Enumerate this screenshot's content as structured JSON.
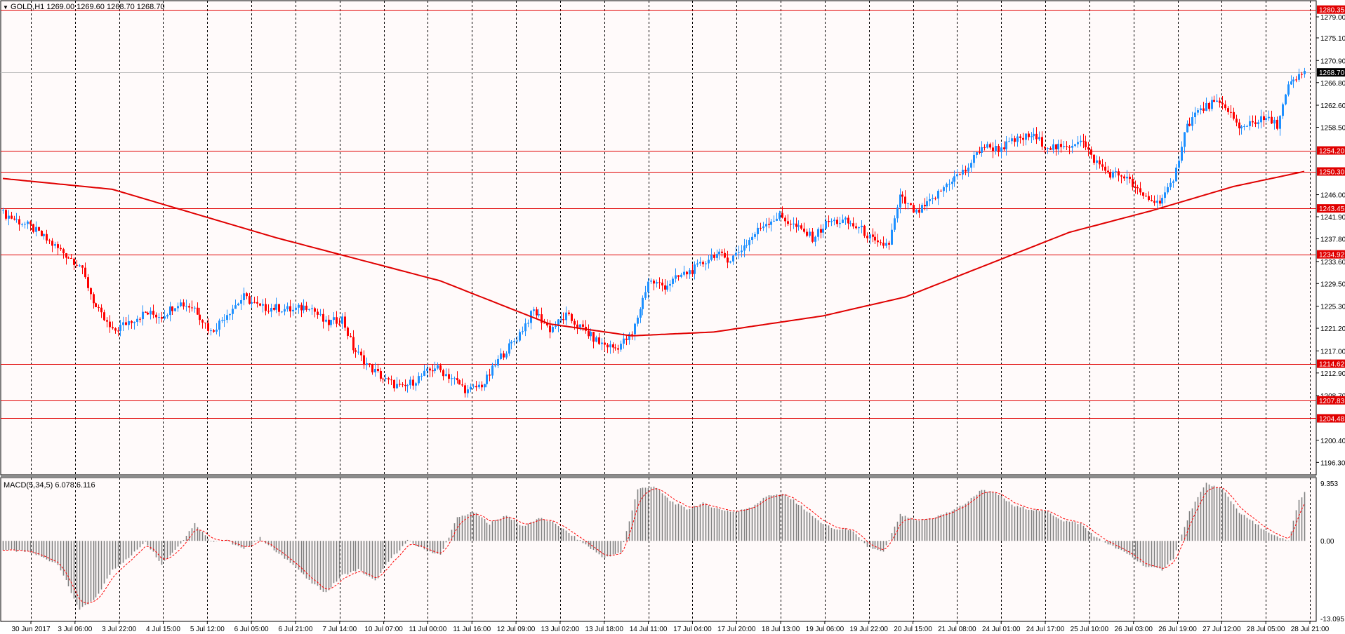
{
  "window": {
    "symbol_line": "GOLD,H1  1269.00 1269.60 1268.70 1268.70",
    "macd_line": "MACD(5,34,5) 6.078 6.116"
  },
  "colors": {
    "background": "#fffafa",
    "grid": "#000000",
    "bull_candle": "#1e90ff",
    "bear_candle": "#ff0000",
    "level_line": "#e00000",
    "ma_line": "#e00000",
    "macd_hist": "#808080",
    "macd_signal": "#ff0000"
  },
  "price_axis": {
    "ticks": [
      "1279.00",
      "1275.10",
      "1270.90",
      "1266.80",
      "1262.60",
      "1258.50",
      "1246.00",
      "1241.90",
      "1237.80",
      "1233.60",
      "1229.50",
      "1225.30",
      "1221.20",
      "1217.00",
      "1212.90",
      "1208.70",
      "1200.40",
      "1196.30"
    ],
    "tick_values": [
      1279.0,
      1275.1,
      1270.9,
      1266.8,
      1262.6,
      1258.5,
      1246.0,
      1241.9,
      1237.8,
      1233.6,
      1229.5,
      1225.3,
      1221.2,
      1217.0,
      1212.9,
      1208.7,
      1200.4,
      1196.3
    ],
    "current_price": "1268.70",
    "current_value": 1268.7
  },
  "levels": [
    {
      "label": "1280.35",
      "value": 1280.35
    },
    {
      "label": "1254.20",
      "value": 1254.2
    },
    {
      "label": "1250.30",
      "value": 1250.3
    },
    {
      "label": "1243.45",
      "value": 1243.45
    },
    {
      "label": "1234.92",
      "value": 1234.92
    },
    {
      "label": "1214.62",
      "value": 1214.62
    },
    {
      "label": "1207.83",
      "value": 1207.83
    },
    {
      "label": "1204.48",
      "value": 1204.48
    }
  ],
  "macd_axis": {
    "ticks": [
      "9.353",
      "0.00",
      "-13.095"
    ],
    "tick_values": [
      9.353,
      0.0,
      -13.095
    ]
  },
  "time_axis": {
    "labels": [
      "30 Jun 2017",
      "3 Jul 06:00",
      "3 Jul 22:00",
      "4 Jul 15:00",
      "5 Jul 12:00",
      "6 Jul 05:00",
      "6 Jul 21:00",
      "7 Jul 14:00",
      "10 Jul 07:00",
      "11 Jul 00:00",
      "11 Jul 16:00",
      "12 Jul 09:00",
      "13 Jul 02:00",
      "13 Jul 18:00",
      "14 Jul 11:00",
      "17 Jul 04:00",
      "17 Jul 20:00",
      "18 Jul 13:00",
      "19 Jul 06:00",
      "19 Jul 22:00",
      "20 Jul 15:00",
      "21 Jul 08:00",
      "24 Jul 01:00",
      "24 Jul 17:00",
      "25 Jul 10:00",
      "26 Jul 03:00",
      "26 Jul 19:00",
      "27 Jul 12:00",
      "28 Jul 05:00",
      "28 Jul 21:00"
    ]
  },
  "chart_data": {
    "type": "candlestick",
    "instrument": "GOLD",
    "timeframe": "H1",
    "close_path": [
      [
        0,
        1242.5
      ],
      [
        10,
        1240.0
      ],
      [
        20,
        1236.0
      ],
      [
        28,
        1233.0
      ],
      [
        34,
        1225.0
      ],
      [
        40,
        1220.5
      ],
      [
        46,
        1222.5
      ],
      [
        52,
        1224.0
      ],
      [
        58,
        1223.5
      ],
      [
        64,
        1226.0
      ],
      [
        70,
        1225.0
      ],
      [
        76,
        1220.5
      ],
      [
        82,
        1224.0
      ],
      [
        88,
        1227.0
      ],
      [
        94,
        1225.0
      ],
      [
        100,
        1225.0
      ],
      [
        106,
        1224.5
      ],
      [
        112,
        1225.5
      ],
      [
        118,
        1222.0
      ],
      [
        124,
        1223.0
      ],
      [
        128,
        1217.5
      ],
      [
        134,
        1214.0
      ],
      [
        140,
        1211.5
      ],
      [
        146,
        1210.0
      ],
      [
        152,
        1212.0
      ],
      [
        158,
        1214.0
      ],
      [
        164,
        1212.0
      ],
      [
        170,
        1209.5
      ],
      [
        176,
        1211.0
      ],
      [
        182,
        1216.0
      ],
      [
        188,
        1219.5
      ],
      [
        194,
        1224.5
      ],
      [
        200,
        1221.0
      ],
      [
        206,
        1223.5
      ],
      [
        212,
        1221.0
      ],
      [
        218,
        1218.5
      ],
      [
        224,
        1217.5
      ],
      [
        230,
        1220.0
      ],
      [
        236,
        1230.0
      ],
      [
        242,
        1229.0
      ],
      [
        248,
        1231.0
      ],
      [
        254,
        1232.5
      ],
      [
        260,
        1235.0
      ],
      [
        266,
        1234.0
      ],
      [
        272,
        1237.0
      ],
      [
        278,
        1240.5
      ],
      [
        284,
        1242.0
      ],
      [
        290,
        1240.0
      ],
      [
        296,
        1238.0
      ],
      [
        302,
        1241.0
      ],
      [
        308,
        1241.0
      ],
      [
        314,
        1239.5
      ],
      [
        320,
        1236.5
      ],
      [
        324,
        1237.0
      ],
      [
        328,
        1245.5
      ],
      [
        334,
        1242.5
      ],
      [
        340,
        1245.0
      ],
      [
        346,
        1248.5
      ],
      [
        352,
        1250.5
      ],
      [
        358,
        1255.0
      ],
      [
        364,
        1254.5
      ],
      [
        370,
        1256.0
      ],
      [
        376,
        1257.0
      ],
      [
        382,
        1255.0
      ],
      [
        388,
        1254.5
      ],
      [
        394,
        1256.5
      ],
      [
        398,
        1253.0
      ],
      [
        404,
        1250.0
      ],
      [
        410,
        1249.5
      ],
      [
        416,
        1246.0
      ],
      [
        422,
        1244.5
      ],
      [
        428,
        1248.0
      ],
      [
        432,
        1258.0
      ],
      [
        436,
        1261.0
      ],
      [
        442,
        1263.0
      ],
      [
        448,
        1262.0
      ],
      [
        452,
        1258.0
      ],
      [
        456,
        1259.5
      ],
      [
        462,
        1260.0
      ],
      [
        466,
        1259.0
      ],
      [
        470,
        1266.0
      ],
      [
        476,
        1268.7
      ]
    ],
    "ma_path": [
      [
        0,
        1249.0
      ],
      [
        40,
        1247.0
      ],
      [
        100,
        1238.0
      ],
      [
        160,
        1230.0
      ],
      [
        200,
        1222.0
      ],
      [
        230,
        1219.8
      ],
      [
        260,
        1220.5
      ],
      [
        300,
        1223.5
      ],
      [
        330,
        1227.0
      ],
      [
        360,
        1233.0
      ],
      [
        390,
        1239.0
      ],
      [
        420,
        1243.0
      ],
      [
        450,
        1247.5
      ],
      [
        476,
        1250.3
      ]
    ],
    "macd_hist_path": [
      [
        0,
        -1.5
      ],
      [
        10,
        -2.0
      ],
      [
        20,
        -4.0
      ],
      [
        28,
        -12.0
      ],
      [
        34,
        -10.0
      ],
      [
        40,
        -5.0
      ],
      [
        46,
        -3.0
      ],
      [
        52,
        0.0
      ],
      [
        58,
        -4.0
      ],
      [
        64,
        -1.0
      ],
      [
        70,
        3.0
      ],
      [
        76,
        0.0
      ],
      [
        82,
        0.0
      ],
      [
        88,
        -1.5
      ],
      [
        94,
        0.5
      ],
      [
        100,
        -2.0
      ],
      [
        106,
        -4.0
      ],
      [
        112,
        -7.0
      ],
      [
        118,
        -9.0
      ],
      [
        124,
        -6.0
      ],
      [
        130,
        -5.0
      ],
      [
        136,
        -7.0
      ],
      [
        142,
        -3.0
      ],
      [
        148,
        0.0
      ],
      [
        154,
        -1.5
      ],
      [
        160,
        -2.5
      ],
      [
        166,
        4.0
      ],
      [
        172,
        5.0
      ],
      [
        178,
        3.0
      ],
      [
        184,
        4.5
      ],
      [
        190,
        2.5
      ],
      [
        196,
        4.0
      ],
      [
        202,
        3.0
      ],
      [
        208,
        1.0
      ],
      [
        214,
        -1.0
      ],
      [
        220,
        -3.0
      ],
      [
        226,
        -2.0
      ],
      [
        232,
        9.0
      ],
      [
        238,
        9.5
      ],
      [
        244,
        7.0
      ],
      [
        250,
        5.5
      ],
      [
        256,
        6.5
      ],
      [
        262,
        5.5
      ],
      [
        268,
        5.0
      ],
      [
        274,
        6.0
      ],
      [
        280,
        8.0
      ],
      [
        286,
        8.0
      ],
      [
        292,
        6.0
      ],
      [
        298,
        3.5
      ],
      [
        304,
        2.0
      ],
      [
        310,
        2.0
      ],
      [
        316,
        -1.0
      ],
      [
        322,
        -2.0
      ],
      [
        328,
        4.5
      ],
      [
        334,
        3.5
      ],
      [
        340,
        4.0
      ],
      [
        346,
        5.0
      ],
      [
        352,
        6.5
      ],
      [
        358,
        9.0
      ],
      [
        364,
        8.0
      ],
      [
        370,
        6.0
      ],
      [
        376,
        5.5
      ],
      [
        382,
        5.0
      ],
      [
        388,
        3.5
      ],
      [
        394,
        3.0
      ],
      [
        400,
        0.5
      ],
      [
        406,
        -1.0
      ],
      [
        412,
        -2.5
      ],
      [
        418,
        -4.5
      ],
      [
        424,
        -5.0
      ],
      [
        428,
        -3.0
      ],
      [
        434,
        5.0
      ],
      [
        440,
        10.0
      ],
      [
        446,
        9.0
      ],
      [
        452,
        5.0
      ],
      [
        458,
        3.0
      ],
      [
        464,
        1.0
      ],
      [
        470,
        0.0
      ],
      [
        474,
        7.0
      ],
      [
        476,
        8.5
      ]
    ],
    "macd_values": {
      "main": 6.078,
      "signal": 6.116
    },
    "price_range": [
      1194.0,
      1282.0
    ],
    "macd_range": [
      -14.0,
      11.0
    ]
  }
}
